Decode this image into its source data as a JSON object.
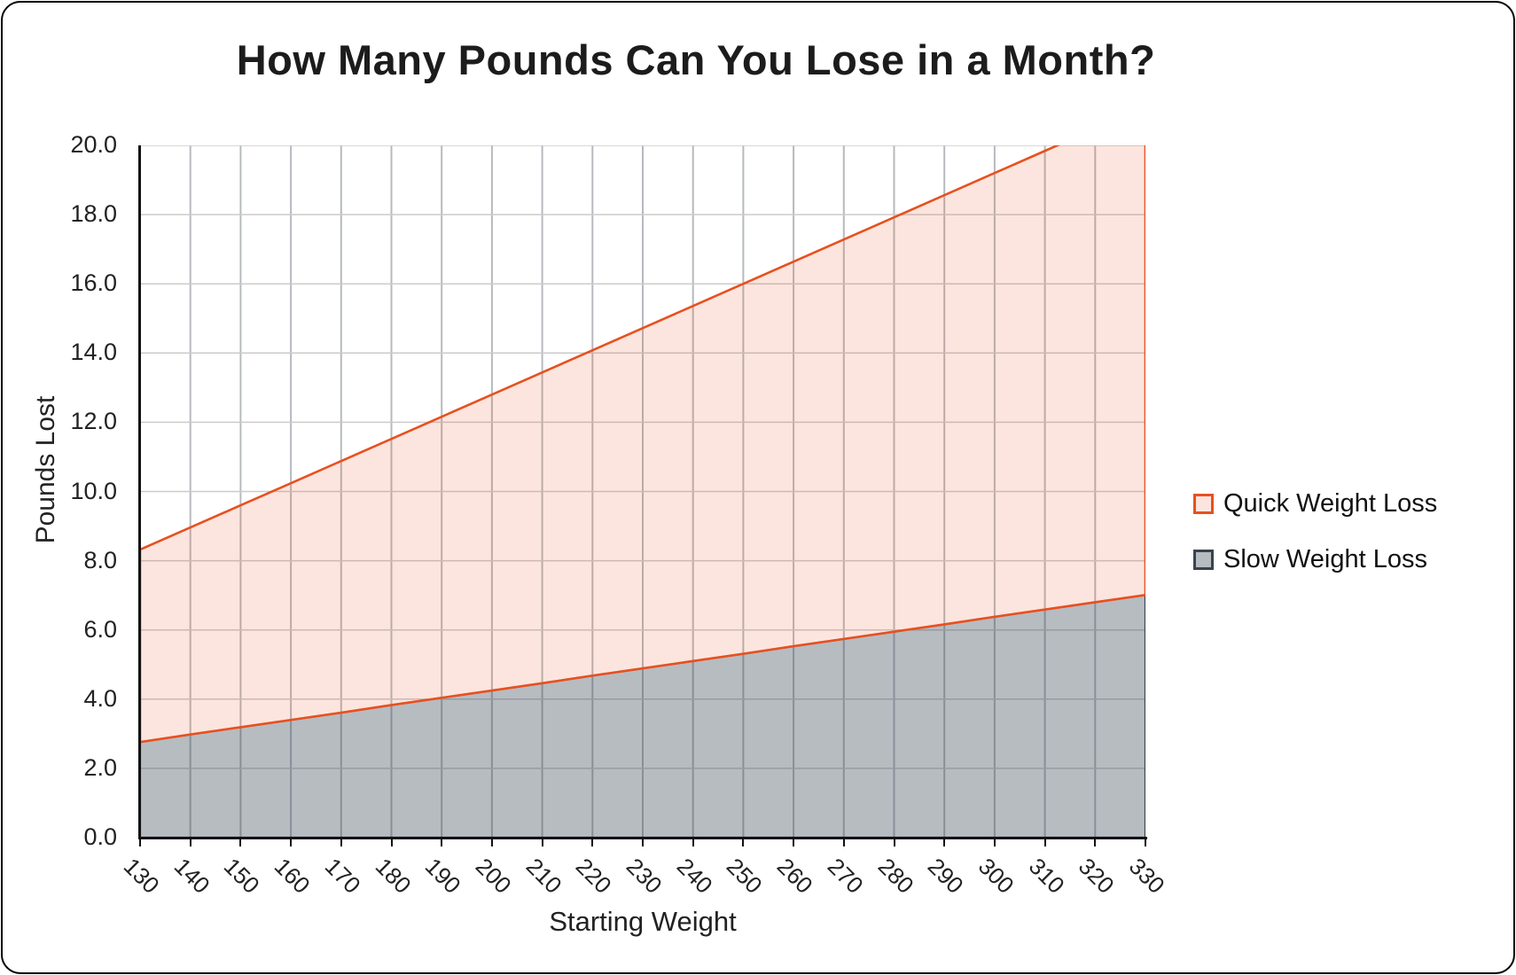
{
  "title": "How Many Pounds Can You Lose in a Month?",
  "chart_data": {
    "type": "area",
    "title": "How Many Pounds Can You Lose in a Month?",
    "xlabel": "Starting Weight",
    "ylabel": "Pounds Lost",
    "xlim": [
      130,
      330
    ],
    "ylim": [
      0,
      20
    ],
    "grid": true,
    "legend_position": "right",
    "x": [
      130,
      140,
      150,
      160,
      170,
      180,
      190,
      200,
      210,
      220,
      230,
      240,
      250,
      260,
      270,
      280,
      290,
      300,
      310,
      320,
      330
    ],
    "x_tick_labels": [
      "130",
      "140",
      "150",
      "160",
      "170",
      "180",
      "190",
      "200",
      "210",
      "220",
      "230",
      "240",
      "250",
      "260",
      "270",
      "280",
      "290",
      "300",
      "310",
      "320",
      "330"
    ],
    "y_tick_labels": [
      "0.0",
      "2.0",
      "4.0",
      "6.0",
      "8.0",
      "10.0",
      "12.0",
      "14.0",
      "16.0",
      "18.0",
      "20.0"
    ],
    "series": [
      {
        "name": "Quick Weight Loss",
        "values": [
          8.32,
          8.96,
          9.6,
          10.24,
          10.88,
          11.52,
          12.16,
          12.8,
          13.44,
          14.08,
          14.72,
          15.36,
          16.0,
          16.64,
          17.28,
          17.92,
          18.56,
          19.2,
          19.84,
          20.48,
          21.12
        ],
        "clipped_at_ymax": true,
        "line_color": "#e8501f",
        "fill_color": "rgba(232,80,31,0.15)"
      },
      {
        "name": "Slow Weight Loss",
        "values": [
          2.76,
          2.98,
          3.19,
          3.4,
          3.61,
          3.83,
          4.04,
          4.25,
          4.46,
          4.68,
          4.89,
          5.1,
          5.31,
          5.53,
          5.74,
          5.95,
          6.16,
          6.38,
          6.59,
          6.8,
          7.01
        ],
        "clipped_at_ymax": false,
        "line_color": "#38434d",
        "fill_color": "rgba(55,70,82,0.36)"
      }
    ],
    "colors": {
      "vertical_gridline": "#b6babe",
      "horizontal_gridline": "#cbcbcb",
      "axis_line": "#111111",
      "text": "#222222"
    }
  }
}
